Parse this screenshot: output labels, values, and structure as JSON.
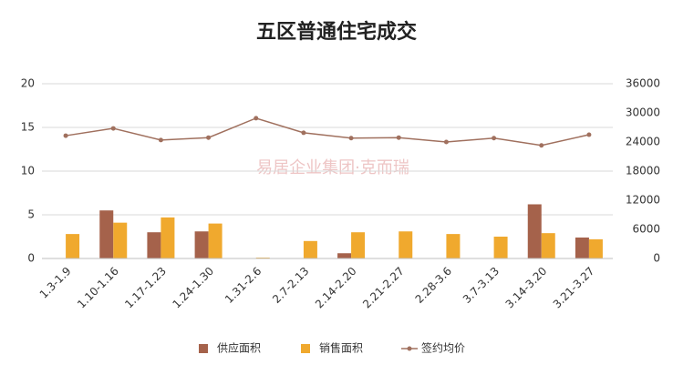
{
  "chart_data": {
    "type": "bar-line",
    "title": "五区普通住宅成交",
    "watermark": "易居企业集团·克而瑞",
    "categories": [
      "1.3-1.9",
      "1.10-1.16",
      "1.17-1.23",
      "1.24-1.30",
      "1.31-2.6",
      "2.7-2.13",
      "2.14-2.20",
      "2.21-2.27",
      "2.28-3.6",
      "3.7-3.13",
      "3.14-3.20",
      "3.21-3.27"
    ],
    "series": [
      {
        "name": "供应面积",
        "type": "bar",
        "color": "#a5624b",
        "values": [
          0,
          5.5,
          3.0,
          3.1,
          0,
          0,
          0.6,
          0,
          0,
          0,
          6.2,
          2.4
        ]
      },
      {
        "name": "销售面积",
        "type": "bar",
        "color": "#f0a92e",
        "values": [
          2.8,
          4.1,
          4.7,
          4.0,
          0.1,
          2.0,
          3.0,
          3.1,
          2.8,
          2.5,
          2.9,
          2.2
        ]
      },
      {
        "name": "签约均价",
        "type": "line",
        "axis": "y2",
        "color": "#a0705e",
        "values": [
          25300,
          26800,
          24400,
          24900,
          28900,
          25900,
          24800,
          24900,
          24000,
          24800,
          23300,
          25500
        ]
      }
    ],
    "ylim": [
      0,
      20
    ],
    "yticks": [
      0,
      5,
      10,
      15,
      20
    ],
    "y2lim": [
      0,
      36000
    ],
    "y2ticks": [
      0,
      6000,
      12000,
      18000,
      24000,
      30000,
      36000
    ],
    "grid": true,
    "legend": "bottom"
  }
}
